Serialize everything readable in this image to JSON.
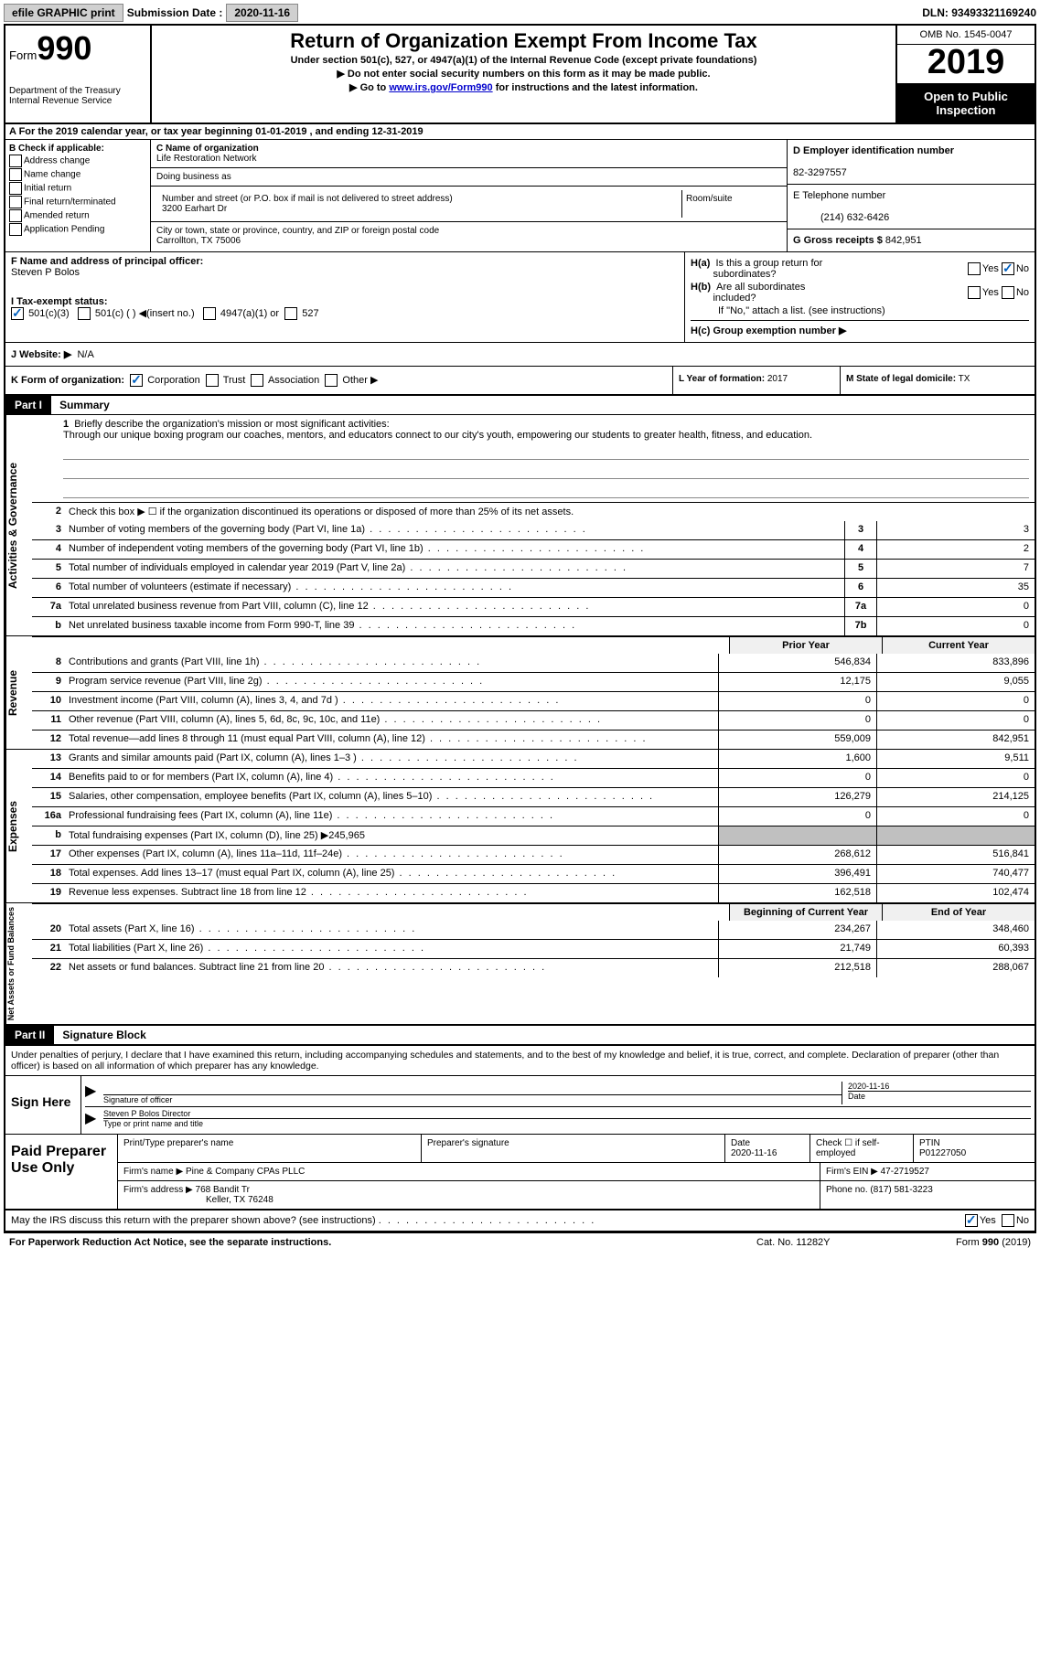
{
  "topbar": {
    "efile": "efile GRAPHIC print",
    "submission_label": "Submission Date :",
    "submission_date": "2020-11-16",
    "dln_label": "DLN:",
    "dln": "93493321169240"
  },
  "header": {
    "form_label": "Form",
    "form_number": "990",
    "dept": "Department of the Treasury\nInternal Revenue Service",
    "title": "Return of Organization Exempt From Income Tax",
    "sub1": "Under section 501(c), 527, or 4947(a)(1) of the Internal Revenue Code (except private foundations)",
    "sub2": "▶ Do not enter social security numbers on this form as it may be made public.",
    "sub3_pre": "▶ Go to ",
    "sub3_link": "www.irs.gov/Form990",
    "sub3_post": " for instructions and the latest information.",
    "omb": "OMB No. 1545-0047",
    "year": "2019",
    "inspection": "Open to Public Inspection"
  },
  "rowA": {
    "text": "A For the 2019 calendar year, or tax year beginning ",
    "begin": "01-01-2019",
    "mid": "   , and ending ",
    "end": "12-31-2019"
  },
  "colB": {
    "label": "B Check if applicable:",
    "items": [
      "Address change",
      "Name change",
      "Initial return",
      "Final return/terminated",
      "Amended return",
      "Application Pending"
    ]
  },
  "colC": {
    "name_label": "C Name of organization",
    "name": "Life Restoration Network",
    "dba_label": "Doing business as",
    "addr_label": "Number and street (or P.O. box if mail is not delivered to street address)",
    "room_label": "Room/suite",
    "addr": "3200 Earhart Dr",
    "city_label": "City or town, state or province, country, and ZIP or foreign postal code",
    "city": "Carrollton, TX  75006"
  },
  "colD": {
    "ein_label": "D Employer identification number",
    "ein": "82-3297557",
    "phone_label": "E Telephone number",
    "phone": "(214) 632-6426",
    "gross_label": "G Gross receipts $",
    "gross": "842,951"
  },
  "rowF": {
    "label": "F Name and address of principal officer:",
    "name": "Steven P Bolos"
  },
  "rowH": {
    "a_label": "H(a)  Is this a group return for subordinates?",
    "b_label": "H(b)  Are all subordinates included?",
    "b_note": "If \"No,\" attach a list. (see instructions)",
    "c_label": "H(c)  Group exemption number ▶",
    "yes": "Yes",
    "no": "No"
  },
  "rowI": {
    "label": "I Tax-exempt status:",
    "opt1": "501(c)(3)",
    "opt2": "501(c) (  ) ◀(insert no.)",
    "opt3": "4947(a)(1) or",
    "opt4": "527"
  },
  "rowJ": {
    "label": "J Website: ▶",
    "value": "N/A"
  },
  "rowK": {
    "label": "K Form of organization:",
    "opts": [
      "Corporation",
      "Trust",
      "Association",
      "Other ▶"
    ]
  },
  "rowL": {
    "label": "L Year of formation:",
    "value": "2017"
  },
  "rowM": {
    "label": "M State of legal domicile:",
    "value": "TX"
  },
  "part1": {
    "header": "Part I",
    "title": "Summary",
    "line1_label": "Briefly describe the organization's mission or most significant activities:",
    "line1_text": "Through our unique boxing program our coaches, mentors, and educators connect to our city's youth, empowering our students to greater health, fitness, and education.",
    "line2": "Check this box ▶ ☐ if the organization discontinued its operations or disposed of more than 25% of its net assets.",
    "sections": {
      "governance": "Activities & Governance",
      "revenue": "Revenue",
      "expenses": "Expenses",
      "netassets": "Net Assets or Fund Balances"
    },
    "col_prior": "Prior Year",
    "col_current": "Current Year",
    "col_begin": "Beginning of Current Year",
    "col_end": "End of Year",
    "gov_lines": [
      {
        "n": "3",
        "t": "Number of voting members of the governing body (Part VI, line 1a)",
        "box": "3",
        "v": "3"
      },
      {
        "n": "4",
        "t": "Number of independent voting members of the governing body (Part VI, line 1b)",
        "box": "4",
        "v": "2"
      },
      {
        "n": "5",
        "t": "Total number of individuals employed in calendar year 2019 (Part V, line 2a)",
        "box": "5",
        "v": "7"
      },
      {
        "n": "6",
        "t": "Total number of volunteers (estimate if necessary)",
        "box": "6",
        "v": "35"
      },
      {
        "n": "7a",
        "t": "Total unrelated business revenue from Part VIII, column (C), line 12",
        "box": "7a",
        "v": "0"
      },
      {
        "n": "b",
        "t": "Net unrelated business taxable income from Form 990-T, line 39",
        "box": "7b",
        "v": "0"
      }
    ],
    "rev_lines": [
      {
        "n": "8",
        "t": "Contributions and grants (Part VIII, line 1h)",
        "p": "546,834",
        "c": "833,896"
      },
      {
        "n": "9",
        "t": "Program service revenue (Part VIII, line 2g)",
        "p": "12,175",
        "c": "9,055"
      },
      {
        "n": "10",
        "t": "Investment income (Part VIII, column (A), lines 3, 4, and 7d )",
        "p": "0",
        "c": "0"
      },
      {
        "n": "11",
        "t": "Other revenue (Part VIII, column (A), lines 5, 6d, 8c, 9c, 10c, and 11e)",
        "p": "0",
        "c": "0"
      },
      {
        "n": "12",
        "t": "Total revenue—add lines 8 through 11 (must equal Part VIII, column (A), line 12)",
        "p": "559,009",
        "c": "842,951"
      }
    ],
    "exp_lines": [
      {
        "n": "13",
        "t": "Grants and similar amounts paid (Part IX, column (A), lines 1–3 )",
        "p": "1,600",
        "c": "9,511"
      },
      {
        "n": "14",
        "t": "Benefits paid to or for members (Part IX, column (A), line 4)",
        "p": "0",
        "c": "0"
      },
      {
        "n": "15",
        "t": "Salaries, other compensation, employee benefits (Part IX, column (A), lines 5–10)",
        "p": "126,279",
        "c": "214,125"
      },
      {
        "n": "16a",
        "t": "Professional fundraising fees (Part IX, column (A), line 11e)",
        "p": "0",
        "c": "0"
      },
      {
        "n": "b",
        "t": "Total fundraising expenses (Part IX, column (D), line 25) ▶245,965",
        "p": "",
        "c": "",
        "shaded": true
      },
      {
        "n": "17",
        "t": "Other expenses (Part IX, column (A), lines 11a–11d, 11f–24e)",
        "p": "268,612",
        "c": "516,841"
      },
      {
        "n": "18",
        "t": "Total expenses. Add lines 13–17 (must equal Part IX, column (A), line 25)",
        "p": "396,491",
        "c": "740,477"
      },
      {
        "n": "19",
        "t": "Revenue less expenses. Subtract line 18 from line 12",
        "p": "162,518",
        "c": "102,474"
      }
    ],
    "net_lines": [
      {
        "n": "20",
        "t": "Total assets (Part X, line 16)",
        "p": "234,267",
        "c": "348,460"
      },
      {
        "n": "21",
        "t": "Total liabilities (Part X, line 26)",
        "p": "21,749",
        "c": "60,393"
      },
      {
        "n": "22",
        "t": "Net assets or fund balances. Subtract line 21 from line 20",
        "p": "212,518",
        "c": "288,067"
      }
    ]
  },
  "part2": {
    "header": "Part II",
    "title": "Signature Block",
    "perjury": "Under penalties of perjury, I declare that I have examined this return, including accompanying schedules and statements, and to the best of my knowledge and belief, it is true, correct, and complete. Declaration of preparer (other than officer) is based on all information of which preparer has any knowledge."
  },
  "sign": {
    "label": "Sign Here",
    "sig_label": "Signature of officer",
    "date_label": "Date",
    "date": "2020-11-16",
    "name": "Steven P Bolos  Director",
    "name_label": "Type or print name and title"
  },
  "prep": {
    "label": "Paid Preparer Use Only",
    "col1": "Print/Type preparer's name",
    "col2": "Preparer's signature",
    "col3_label": "Date",
    "col3": "2020-11-16",
    "col4": "Check ☐ if self-employed",
    "col5_label": "PTIN",
    "col5": "P01227050",
    "firm_name_label": "Firm's name     ▶",
    "firm_name": "Pine & Company CPAs PLLC",
    "firm_ein_label": "Firm's EIN ▶",
    "firm_ein": "47-2719527",
    "firm_addr_label": "Firm's address ▶",
    "firm_addr": "768 Bandit Tr",
    "firm_city": "Keller, TX  76248",
    "phone_label": "Phone no.",
    "phone": "(817) 581-3223"
  },
  "discuss": {
    "text": "May the IRS discuss this return with the preparer shown above? (see instructions)",
    "yes": "Yes",
    "no": "No"
  },
  "footer": {
    "left": "For Paperwork Reduction Act Notice, see the separate instructions.",
    "mid": "Cat. No. 11282Y",
    "right": "Form 990 (2019)"
  },
  "colors": {
    "link": "#0000cc",
    "check": "#0060c0",
    "shade": "#c0c0c0"
  }
}
